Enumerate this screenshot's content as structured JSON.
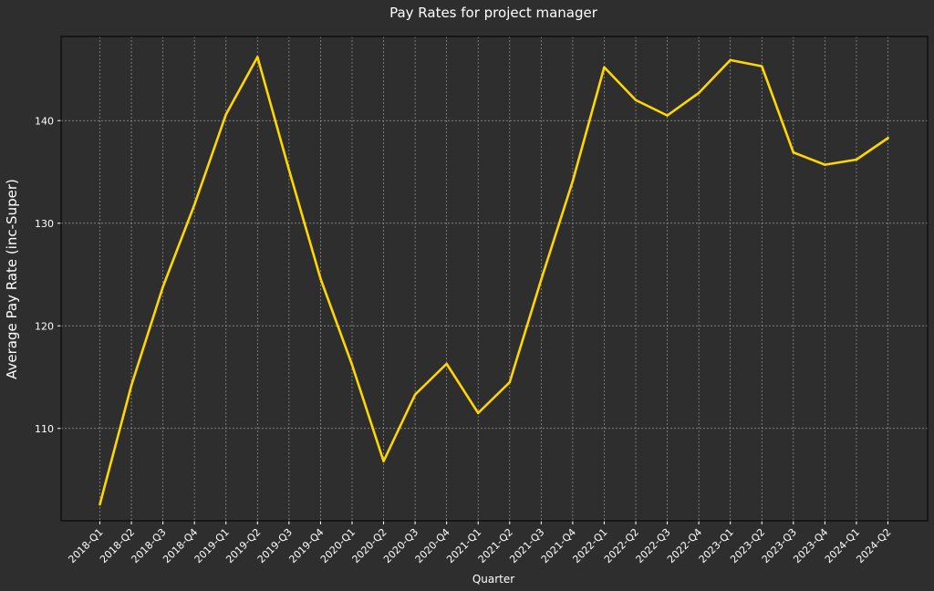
{
  "chart_data": {
    "type": "line",
    "title": "Pay Rates for project manager",
    "xlabel": "Quarter",
    "ylabel": "Average Pay Rate (inc-Super)",
    "categories": [
      "2018-Q1",
      "2018-Q2",
      "2018-Q3",
      "2018-Q4",
      "2019-Q1",
      "2019-Q2",
      "2019-Q3",
      "2019-Q4",
      "2020-Q1",
      "2020-Q2",
      "2020-Q3",
      "2020-Q4",
      "2021-Q1",
      "2021-Q2",
      "2021-Q3",
      "2021-Q4",
      "2022-Q1",
      "2022-Q2",
      "2022-Q3",
      "2022-Q4",
      "2023-Q1",
      "2023-Q2",
      "2023-Q3",
      "2023-Q4",
      "2024-Q1",
      "2024-Q2"
    ],
    "series": [
      {
        "values": [
          102.6,
          114.2,
          123.8,
          131.8,
          140.6,
          146.2,
          135.2,
          124.6,
          116.2,
          106.8,
          113.3,
          116.3,
          111.5,
          114.5,
          124.5,
          134.1,
          145.2,
          142.0,
          140.5,
          142.7,
          145.9,
          145.3,
          136.9,
          135.7,
          136.2,
          138.3
        ]
      }
    ],
    "y_ticks": [
      110,
      120,
      130,
      140
    ],
    "ylim": [
      101,
      148.2
    ],
    "grid": true,
    "line_color": "#ffd700",
    "background_color": "#2e2e2e"
  }
}
